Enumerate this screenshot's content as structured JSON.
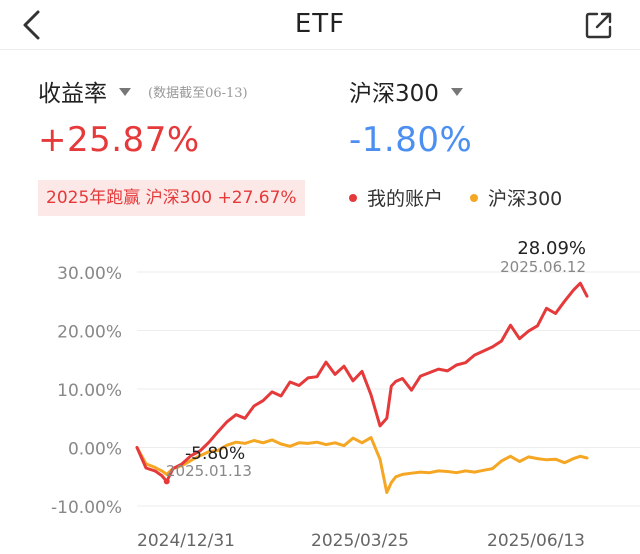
{
  "header": {
    "title": "ETF",
    "back_icon": "chevron-left-icon",
    "share_icon": "share-icon"
  },
  "summary": {
    "left_label": "收益率",
    "as_of": "(数据截至06-13)",
    "left_value": "+25.87%",
    "right_label": "沪深300",
    "right_value": "-1.80%",
    "outperform": "2025年跑赢 沪深300 +27.67%"
  },
  "legend": [
    {
      "label": "我的账户",
      "color": "#e5393a"
    },
    {
      "label": "沪深300",
      "color": "#f5a623"
    }
  ],
  "chart_data": {
    "type": "line",
    "x_labels": [
      "2024/12/31",
      "2025/03/25",
      "2025/06/13"
    ],
    "y_tick_labels": [
      "30.00%",
      "20.00%",
      "10.00%",
      "0.00%",
      "-10.00%"
    ],
    "y_ticks": [
      30,
      20,
      10,
      0,
      -10
    ],
    "ylim": [
      -12,
      32
    ],
    "x_domain": [
      0,
      1
    ],
    "grid": true,
    "annotations": [
      {
        "label": "28.09%",
        "date": "2025.06.12",
        "x": 0.985,
        "y": 28.09,
        "position": "max"
      },
      {
        "label": "-5.80%",
        "date": "2025.01.13",
        "x": 0.066,
        "y": -5.8,
        "position": "min"
      }
    ],
    "series": [
      {
        "name": "我的账户",
        "color": "#e5393a",
        "x": [
          0.0,
          0.02,
          0.04,
          0.055,
          0.066,
          0.08,
          0.1,
          0.12,
          0.14,
          0.16,
          0.18,
          0.2,
          0.22,
          0.24,
          0.26,
          0.28,
          0.3,
          0.32,
          0.34,
          0.36,
          0.38,
          0.4,
          0.42,
          0.44,
          0.46,
          0.48,
          0.5,
          0.52,
          0.54,
          0.555,
          0.565,
          0.575,
          0.59,
          0.61,
          0.63,
          0.65,
          0.67,
          0.69,
          0.71,
          0.73,
          0.75,
          0.77,
          0.79,
          0.81,
          0.83,
          0.85,
          0.87,
          0.89,
          0.91,
          0.93,
          0.95,
          0.97,
          0.985,
          1.0
        ],
        "values": [
          0.0,
          -3.5,
          -4.0,
          -4.8,
          -5.8,
          -3.6,
          -2.8,
          -1.4,
          -0.6,
          0.9,
          2.7,
          4.4,
          5.6,
          5.0,
          7.1,
          8.0,
          9.5,
          8.8,
          11.2,
          10.6,
          11.9,
          12.1,
          14.6,
          12.5,
          13.9,
          11.4,
          13.0,
          9.0,
          3.7,
          5.0,
          10.5,
          11.3,
          11.8,
          9.8,
          12.2,
          12.8,
          13.4,
          13.1,
          14.1,
          14.5,
          15.8,
          16.5,
          17.2,
          18.2,
          20.9,
          18.6,
          19.9,
          20.8,
          23.8,
          22.9,
          25.0,
          26.9,
          28.09,
          25.87
        ]
      },
      {
        "name": "沪深300",
        "color": "#f5a623",
        "x": [
          0.0,
          0.02,
          0.04,
          0.055,
          0.066,
          0.08,
          0.1,
          0.12,
          0.14,
          0.16,
          0.18,
          0.2,
          0.22,
          0.24,
          0.26,
          0.28,
          0.3,
          0.32,
          0.34,
          0.36,
          0.38,
          0.4,
          0.42,
          0.44,
          0.46,
          0.48,
          0.5,
          0.52,
          0.54,
          0.555,
          0.565,
          0.575,
          0.59,
          0.61,
          0.63,
          0.65,
          0.67,
          0.69,
          0.71,
          0.73,
          0.75,
          0.77,
          0.79,
          0.81,
          0.83,
          0.85,
          0.87,
          0.89,
          0.91,
          0.93,
          0.95,
          0.97,
          0.985,
          1.0
        ],
        "values": [
          0.0,
          -2.8,
          -3.4,
          -4.0,
          -4.6,
          -3.6,
          -3.1,
          -2.2,
          -1.4,
          -0.7,
          -0.5,
          0.4,
          0.9,
          0.7,
          1.2,
          0.8,
          1.3,
          0.6,
          0.2,
          0.8,
          0.7,
          0.9,
          0.5,
          0.8,
          0.3,
          1.6,
          0.8,
          1.7,
          -2.0,
          -7.7,
          -6.0,
          -5.0,
          -4.6,
          -4.4,
          -4.2,
          -4.3,
          -4.0,
          -4.1,
          -4.3,
          -4.0,
          -4.2,
          -3.9,
          -3.6,
          -2.3,
          -1.5,
          -2.4,
          -1.6,
          -1.9,
          -2.1,
          -2.0,
          -2.6,
          -1.9,
          -1.5,
          -1.8
        ]
      }
    ]
  }
}
